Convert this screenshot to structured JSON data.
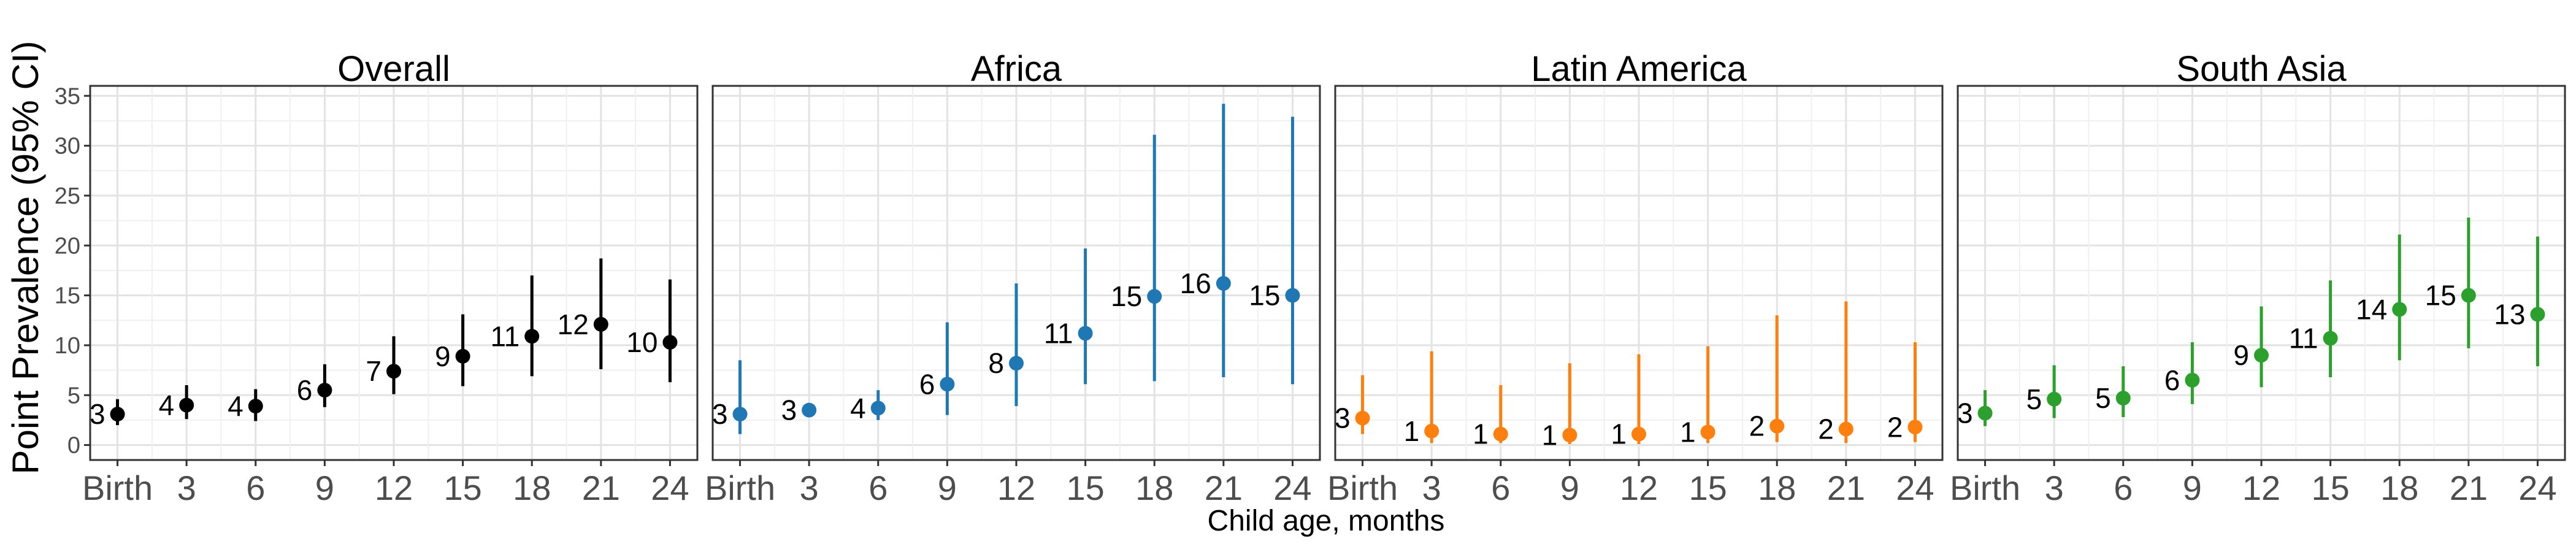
{
  "chart_data": {
    "type": "scatter",
    "ylabel": "Point Prevalence (95% CI)",
    "xlabel": "Child age, months",
    "ylim": [
      -1.5,
      36
    ],
    "yticks": [
      0,
      5,
      10,
      15,
      20,
      25,
      30,
      35
    ],
    "categories": [
      "Birth",
      "3",
      "6",
      "9",
      "12",
      "15",
      "18",
      "21",
      "24"
    ],
    "grid": true,
    "legend": "none",
    "panels": [
      {
        "title": "Overall",
        "color": "#000000",
        "points": [
          {
            "x": "Birth",
            "y": 3.1,
            "low": 2.0,
            "high": 4.6,
            "label": "3"
          },
          {
            "x": "3",
            "y": 4.0,
            "low": 2.6,
            "high": 6.0,
            "label": "4"
          },
          {
            "x": "6",
            "y": 3.9,
            "low": 2.4,
            "high": 5.6,
            "label": "4"
          },
          {
            "x": "9",
            "y": 5.5,
            "low": 3.8,
            "high": 8.1,
            "label": "6"
          },
          {
            "x": "12",
            "y": 7.4,
            "low": 5.1,
            "high": 10.9,
            "label": "7"
          },
          {
            "x": "15",
            "y": 8.9,
            "low": 5.9,
            "high": 13.1,
            "label": "9"
          },
          {
            "x": "18",
            "y": 10.9,
            "low": 6.9,
            "high": 17.0,
            "label": "11"
          },
          {
            "x": "21",
            "y": 12.1,
            "low": 7.6,
            "high": 18.7,
            "label": "12"
          },
          {
            "x": "24",
            "y": 10.3,
            "low": 6.3,
            "high": 16.6,
            "label": "10"
          }
        ]
      },
      {
        "title": "Africa",
        "color": "#1f77b4",
        "points": [
          {
            "x": "Birth",
            "y": 3.1,
            "low": 1.1,
            "high": 8.5,
            "label": "3"
          },
          {
            "x": "3",
            "y": 3.5,
            "low": 3.1,
            "high": 3.9,
            "label": "3"
          },
          {
            "x": "6",
            "y": 3.7,
            "low": 2.5,
            "high": 5.5,
            "label": "4"
          },
          {
            "x": "9",
            "y": 6.1,
            "low": 3.0,
            "high": 12.3,
            "label": "6"
          },
          {
            "x": "12",
            "y": 8.2,
            "low": 3.9,
            "high": 16.2,
            "label": "8"
          },
          {
            "x": "15",
            "y": 11.2,
            "low": 6.1,
            "high": 19.7,
            "label": "11"
          },
          {
            "x": "18",
            "y": 14.9,
            "low": 6.4,
            "high": 31.1,
            "label": "15"
          },
          {
            "x": "21",
            "y": 16.2,
            "low": 6.8,
            "high": 34.2,
            "label": "16"
          },
          {
            "x": "24",
            "y": 15.0,
            "low": 6.1,
            "high": 32.9,
            "label": "15"
          }
        ]
      },
      {
        "title": "Latin America",
        "color": "#ff7f0e",
        "points": [
          {
            "x": "Birth",
            "y": 2.7,
            "low": 1.1,
            "high": 7.0,
            "label": "3"
          },
          {
            "x": "3",
            "y": 1.4,
            "low": 0.2,
            "high": 9.4,
            "label": "1"
          },
          {
            "x": "6",
            "y": 1.1,
            "low": 0.2,
            "high": 6.0,
            "label": "1"
          },
          {
            "x": "9",
            "y": 1.0,
            "low": 0.1,
            "high": 8.2,
            "label": "1"
          },
          {
            "x": "12",
            "y": 1.1,
            "low": 0.1,
            "high": 9.1,
            "label": "1"
          },
          {
            "x": "15",
            "y": 1.3,
            "low": 0.2,
            "high": 9.9,
            "label": "1"
          },
          {
            "x": "18",
            "y": 1.9,
            "low": 0.3,
            "high": 13.0,
            "label": "2"
          },
          {
            "x": "21",
            "y": 1.6,
            "low": 0.2,
            "high": 14.4,
            "label": "2"
          },
          {
            "x": "24",
            "y": 1.8,
            "low": 0.3,
            "high": 10.3,
            "label": "2"
          }
        ]
      },
      {
        "title": "South Asia",
        "color": "#2ca02c",
        "points": [
          {
            "x": "Birth",
            "y": 3.2,
            "low": 1.9,
            "high": 5.5,
            "label": "3"
          },
          {
            "x": "3",
            "y": 4.6,
            "low": 2.7,
            "high": 8.0,
            "label": "5"
          },
          {
            "x": "6",
            "y": 4.7,
            "low": 2.8,
            "high": 7.9,
            "label": "5"
          },
          {
            "x": "9",
            "y": 6.5,
            "low": 4.1,
            "high": 10.3,
            "label": "6"
          },
          {
            "x": "12",
            "y": 9.0,
            "low": 5.8,
            "high": 13.9,
            "label": "9"
          },
          {
            "x": "15",
            "y": 10.7,
            "low": 6.8,
            "high": 16.5,
            "label": "11"
          },
          {
            "x": "18",
            "y": 13.6,
            "low": 8.5,
            "high": 21.1,
            "label": "14"
          },
          {
            "x": "21",
            "y": 15.0,
            "low": 9.7,
            "high": 22.8,
            "label": "15"
          },
          {
            "x": "24",
            "y": 13.1,
            "low": 7.9,
            "high": 20.9,
            "label": "13"
          }
        ]
      }
    ]
  }
}
